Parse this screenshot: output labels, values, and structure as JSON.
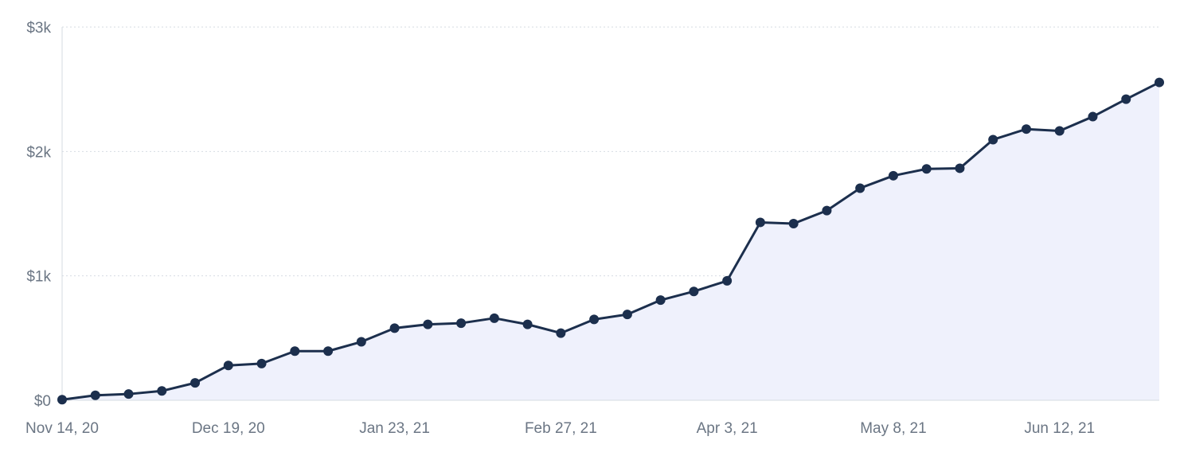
{
  "chart_data": {
    "type": "area",
    "title": "",
    "xlabel": "",
    "ylabel": "",
    "x_tick_labels": [
      "Nov 14, 20",
      "Dec 19, 20",
      "Jan 23, 21",
      "Feb 27, 21",
      "Apr 3, 21",
      "May 8, 21",
      "Jun 12, 21"
    ],
    "y_tick_labels": [
      "$0",
      "$1k",
      "$2k",
      "$3k"
    ],
    "y_ticks": [
      0,
      1000,
      2000,
      3000
    ],
    "ylim": [
      0,
      3000
    ],
    "xlim": [
      "2020-11-14",
      "2021-07-03"
    ],
    "grid": "horizontal dotted",
    "series": [
      {
        "values": [
          {
            "x": "2020-11-14",
            "y": 5
          },
          {
            "x": "2020-11-21",
            "y": 40
          },
          {
            "x": "2020-11-28",
            "y": 50
          },
          {
            "x": "2020-12-05",
            "y": 75
          },
          {
            "x": "2020-12-12",
            "y": 140
          },
          {
            "x": "2020-12-19",
            "y": 280
          },
          {
            "x": "2020-12-26",
            "y": 295
          },
          {
            "x": "2021-01-02",
            "y": 395
          },
          {
            "x": "2021-01-09",
            "y": 395
          },
          {
            "x": "2021-01-16",
            "y": 470
          },
          {
            "x": "2021-01-23",
            "y": 580
          },
          {
            "x": "2021-01-30",
            "y": 610
          },
          {
            "x": "2021-02-06",
            "y": 620
          },
          {
            "x": "2021-02-13",
            "y": 660
          },
          {
            "x": "2021-02-20",
            "y": 610
          },
          {
            "x": "2021-02-27",
            "y": 540
          },
          {
            "x": "2021-03-06",
            "y": 650
          },
          {
            "x": "2021-03-13",
            "y": 690
          },
          {
            "x": "2021-03-20",
            "y": 805
          },
          {
            "x": "2021-03-27",
            "y": 875
          },
          {
            "x": "2021-04-03",
            "y": 960
          },
          {
            "x": "2021-04-10",
            "y": 1430
          },
          {
            "x": "2021-04-17",
            "y": 1420
          },
          {
            "x": "2021-04-24",
            "y": 1525
          },
          {
            "x": "2021-05-01",
            "y": 1705
          },
          {
            "x": "2021-05-08",
            "y": 1805
          },
          {
            "x": "2021-05-15",
            "y": 1860
          },
          {
            "x": "2021-05-22",
            "y": 1865
          },
          {
            "x": "2021-05-29",
            "y": 2095
          },
          {
            "x": "2021-06-05",
            "y": 2180
          },
          {
            "x": "2021-06-12",
            "y": 2165
          },
          {
            "x": "2021-06-19",
            "y": 2280
          },
          {
            "x": "2021-06-26",
            "y": 2420
          },
          {
            "x": "2021-07-03",
            "y": 2555
          }
        ]
      }
    ],
    "colors": {
      "line": "#1c2f4d",
      "marker": "#1c2f4d",
      "area_fill": "#eff1fc",
      "grid": "#d6dbe2",
      "axis": "#d6dbe2",
      "tick_label": "#6b7684"
    }
  }
}
